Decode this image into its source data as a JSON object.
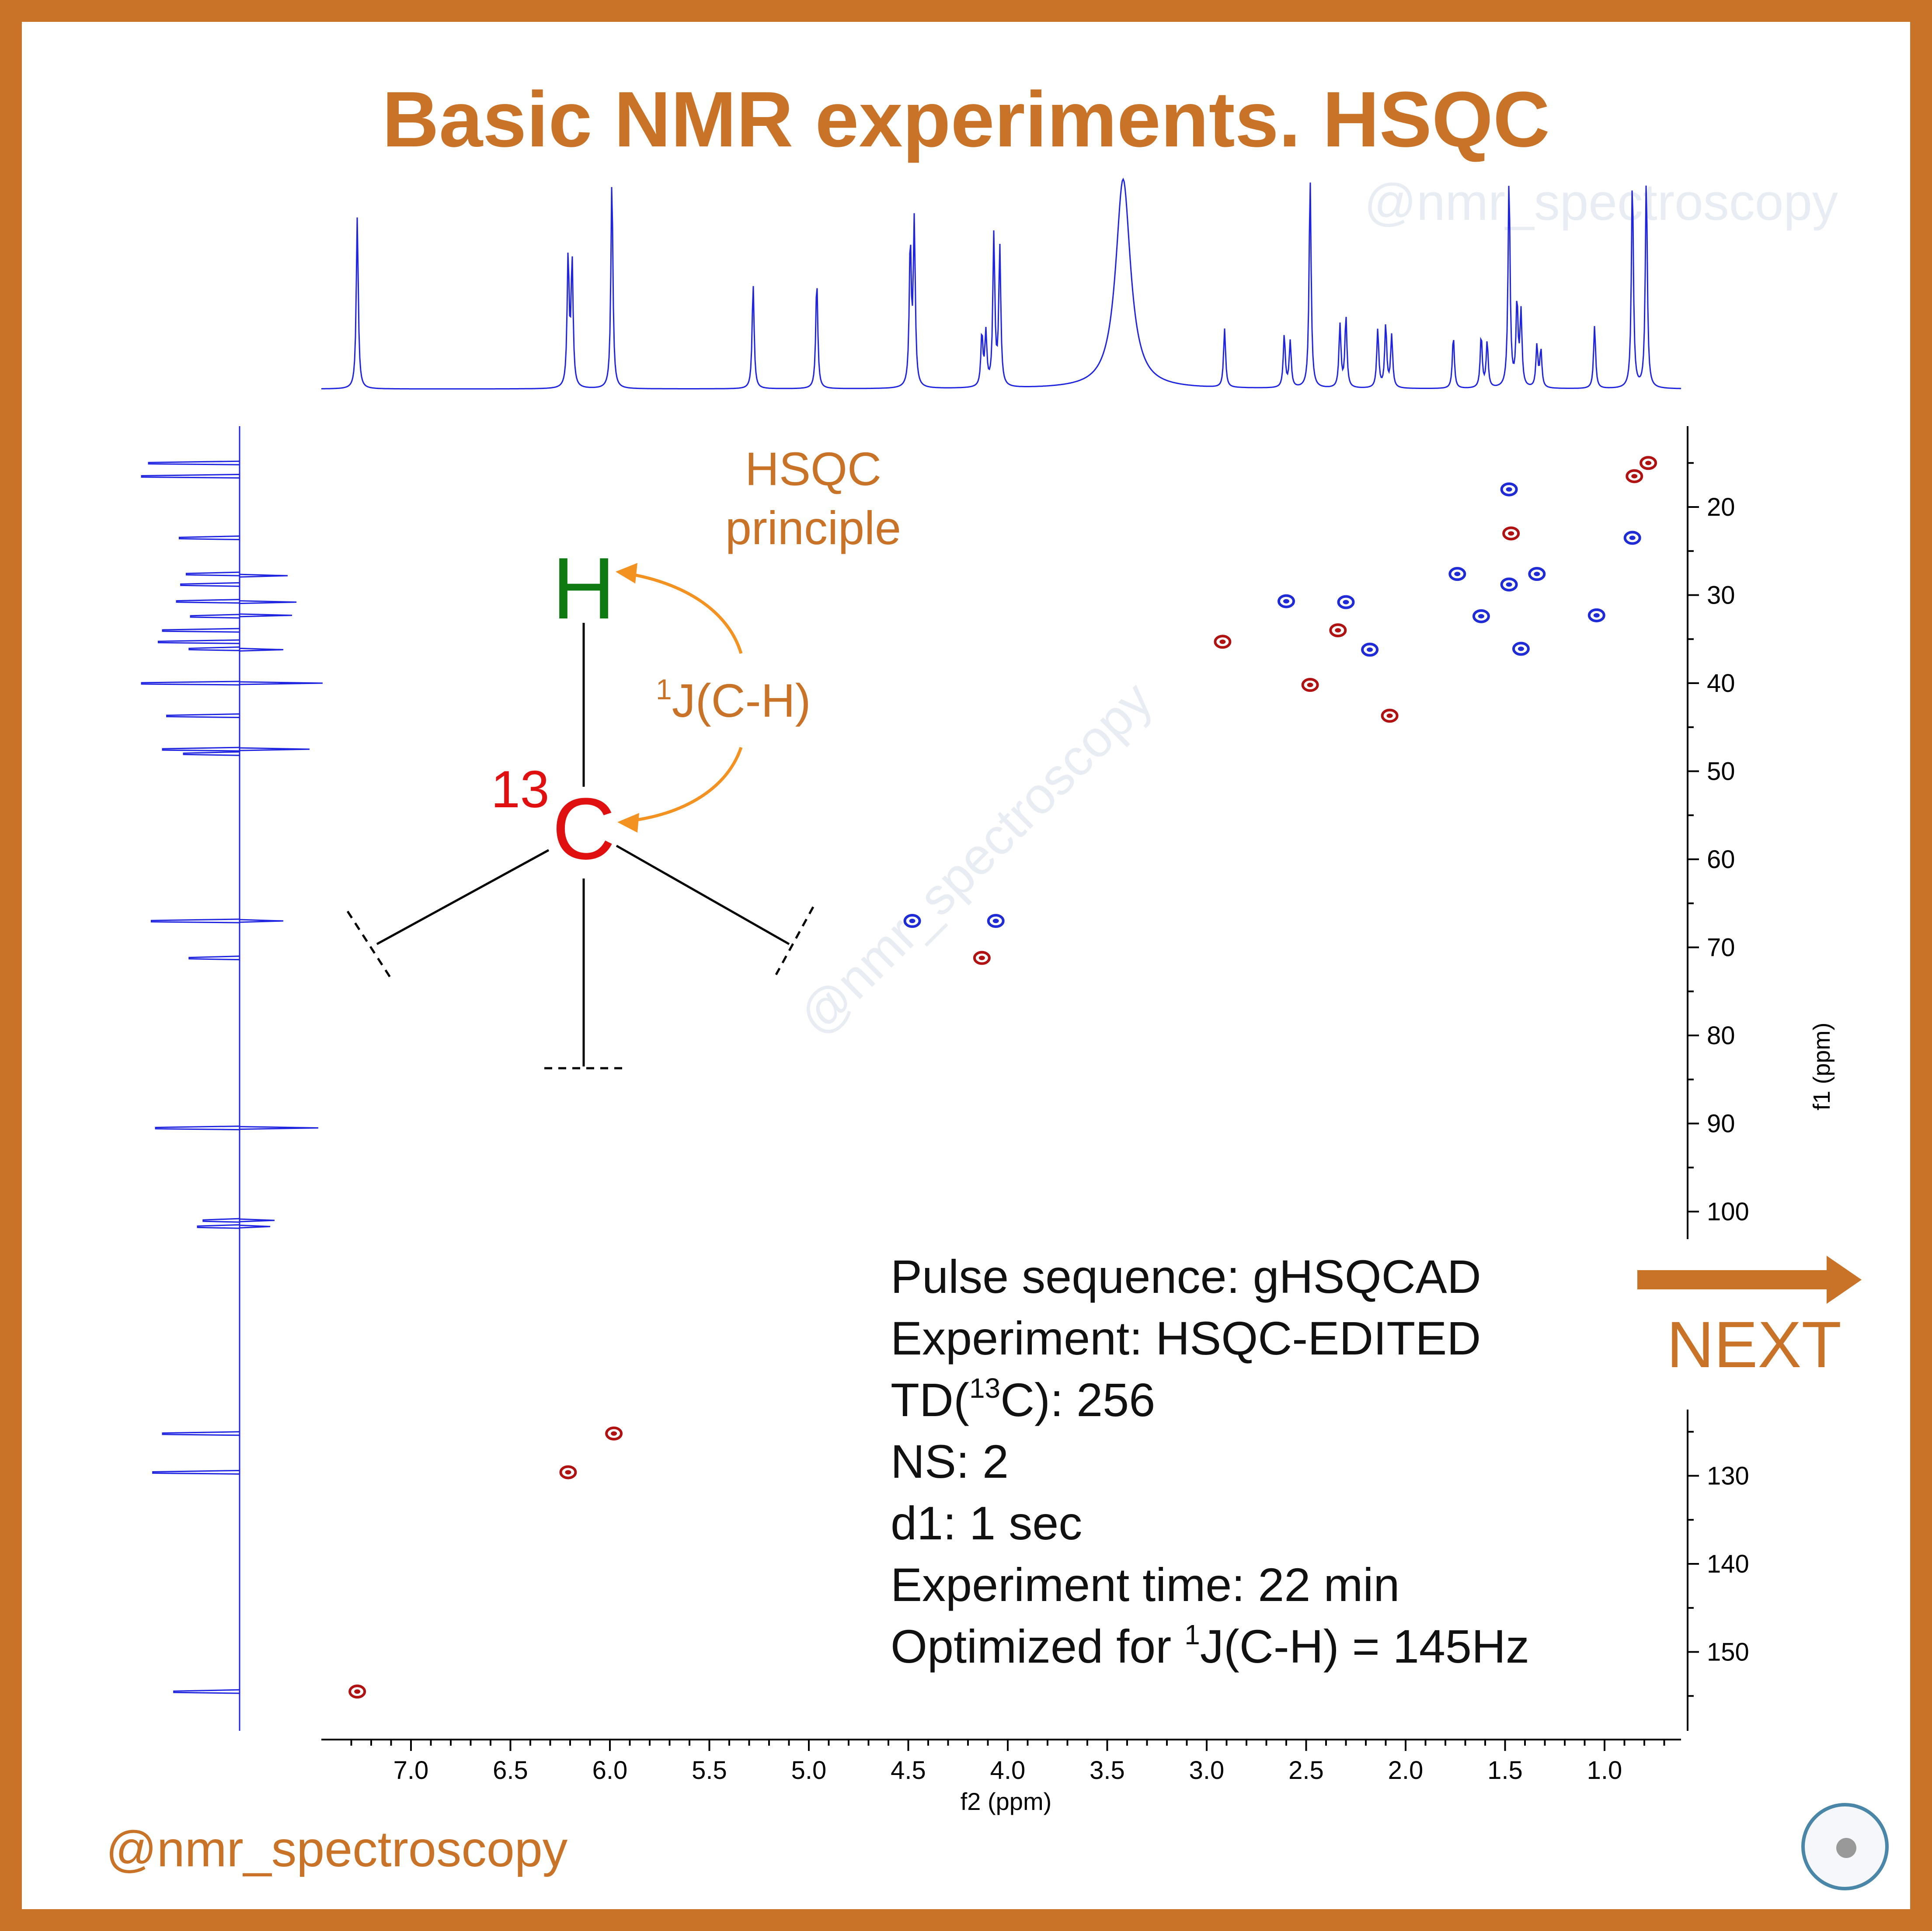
{
  "title": "Basic NMR experiments. HSQC",
  "watermark": "@nmr_spectroscopy",
  "handle": "@nmr_spectroscopy",
  "next_label": "NEXT",
  "principle": {
    "heading_line1": "HSQC",
    "heading_line2": "principle",
    "atom_h": "H",
    "atom_c": "C",
    "isotope": "13",
    "coupling_sup": "1",
    "coupling_text": "J(C-H)"
  },
  "params": {
    "line1": "Pulse sequence: gHSQCAD",
    "line2": "Experiment: HSQC-EDITED",
    "line3_pre": "TD(",
    "line3_sup": "13",
    "line3_post": "C): 256",
    "line4": "NS: 2",
    "line5": "d1: 1 sec",
    "line6": "Experiment time: 22 min",
    "line7_pre": "Optimized for ",
    "line7_sup": "1",
    "line7_post": "J(C-H) = 145Hz"
  },
  "colors": {
    "accent": "#C87328",
    "arrow_orange": "#F39121",
    "spectrum_blue": "#1F24E0",
    "ch2_blue": "#1F2BD6",
    "ch_red": "#B01212",
    "h_green": "#0F7A12",
    "c_red": "#E01010"
  },
  "chart_data": {
    "type": "scatter",
    "xlabel": "f2 (ppm)",
    "ylabel": "f1 (ppm)",
    "x_ticks": [
      "7.0",
      "6.5",
      "6.0",
      "5.5",
      "5.0",
      "4.5",
      "4.0",
      "3.5",
      "3.0",
      "2.5",
      "2.0",
      "1.5",
      "1.0"
    ],
    "y_ticks": [
      "20",
      "30",
      "40",
      "50",
      "60",
      "70",
      "80",
      "90",
      "100",
      "130",
      "140",
      "150"
    ],
    "xlim": [
      7.4,
      0.6
    ],
    "ylim": [
      11,
      157
    ],
    "series": [
      {
        "name": "",
        "color": "#1F2BD6",
        "points": [
          [
            1.48,
            18.0
          ],
          [
            0.86,
            23.5
          ],
          [
            1.74,
            27.6
          ],
          [
            1.34,
            27.6
          ],
          [
            1.48,
            28.8
          ],
          [
            2.6,
            30.7
          ],
          [
            2.3,
            30.8
          ],
          [
            1.62,
            32.4
          ],
          [
            1.04,
            32.3
          ],
          [
            2.18,
            36.2
          ],
          [
            1.42,
            36.1
          ],
          [
            4.48,
            67.0
          ],
          [
            4.06,
            67.0
          ]
        ]
      },
      {
        "name": "",
        "color": "#B01212",
        "points": [
          [
            0.78,
            15.0
          ],
          [
            0.85,
            16.5
          ],
          [
            1.47,
            23.0
          ],
          [
            2.92,
            35.3
          ],
          [
            2.34,
            34.0
          ],
          [
            2.48,
            40.2
          ],
          [
            2.08,
            43.7
          ],
          [
            4.13,
            71.2
          ],
          [
            5.98,
            125.2
          ],
          [
            6.21,
            129.6
          ],
          [
            7.27,
            154.5
          ]
        ]
      }
    ],
    "proton_peaks": [
      [
        7.27,
        0.82
      ],
      [
        6.21,
        0.62
      ],
      [
        6.19,
        0.6
      ],
      [
        5.99,
        1.0
      ],
      [
        5.28,
        0.5
      ],
      [
        4.96,
        0.52
      ],
      [
        4.49,
        0.68
      ],
      [
        4.47,
        0.78
      ],
      [
        4.13,
        0.25
      ],
      [
        4.11,
        0.25
      ],
      [
        4.07,
        0.72
      ],
      [
        4.04,
        0.66
      ],
      [
        3.42,
        1.0
      ],
      [
        2.91,
        0.28
      ],
      [
        2.61,
        0.25
      ],
      [
        2.58,
        0.22
      ],
      [
        2.48,
        1.0
      ],
      [
        2.33,
        0.3
      ],
      [
        2.3,
        0.34
      ],
      [
        2.14,
        0.28
      ],
      [
        2.1,
        0.3
      ],
      [
        2.07,
        0.25
      ],
      [
        1.76,
        0.25
      ],
      [
        1.62,
        0.25
      ],
      [
        1.59,
        0.22
      ],
      [
        1.48,
        1.0
      ],
      [
        1.44,
        0.4
      ],
      [
        1.42,
        0.35
      ],
      [
        1.34,
        0.2
      ],
      [
        1.32,
        0.18
      ],
      [
        1.05,
        0.3
      ],
      [
        0.86,
        1.0
      ],
      [
        0.79,
        1.0
      ]
    ],
    "carbon_peaks": [
      [
        15.0,
        0.65
      ],
      [
        16.5,
        0.7
      ],
      [
        23.5,
        0.43
      ],
      [
        27.6,
        0.38
      ],
      [
        28.8,
        0.42
      ],
      [
        30.7,
        0.45
      ],
      [
        32.4,
        0.35
      ],
      [
        34.0,
        0.55
      ],
      [
        35.3,
        0.58
      ],
      [
        36.1,
        0.36
      ],
      [
        40.0,
        0.7
      ],
      [
        43.7,
        0.52
      ],
      [
        47.5,
        0.55
      ],
      [
        48.0,
        0.4
      ],
      [
        67.0,
        0.63
      ],
      [
        71.2,
        0.36
      ],
      [
        90.5,
        0.6
      ],
      [
        101.0,
        0.26
      ],
      [
        101.7,
        0.3
      ],
      [
        125.2,
        0.55
      ],
      [
        129.6,
        0.62
      ],
      [
        154.5,
        0.47
      ]
    ]
  }
}
